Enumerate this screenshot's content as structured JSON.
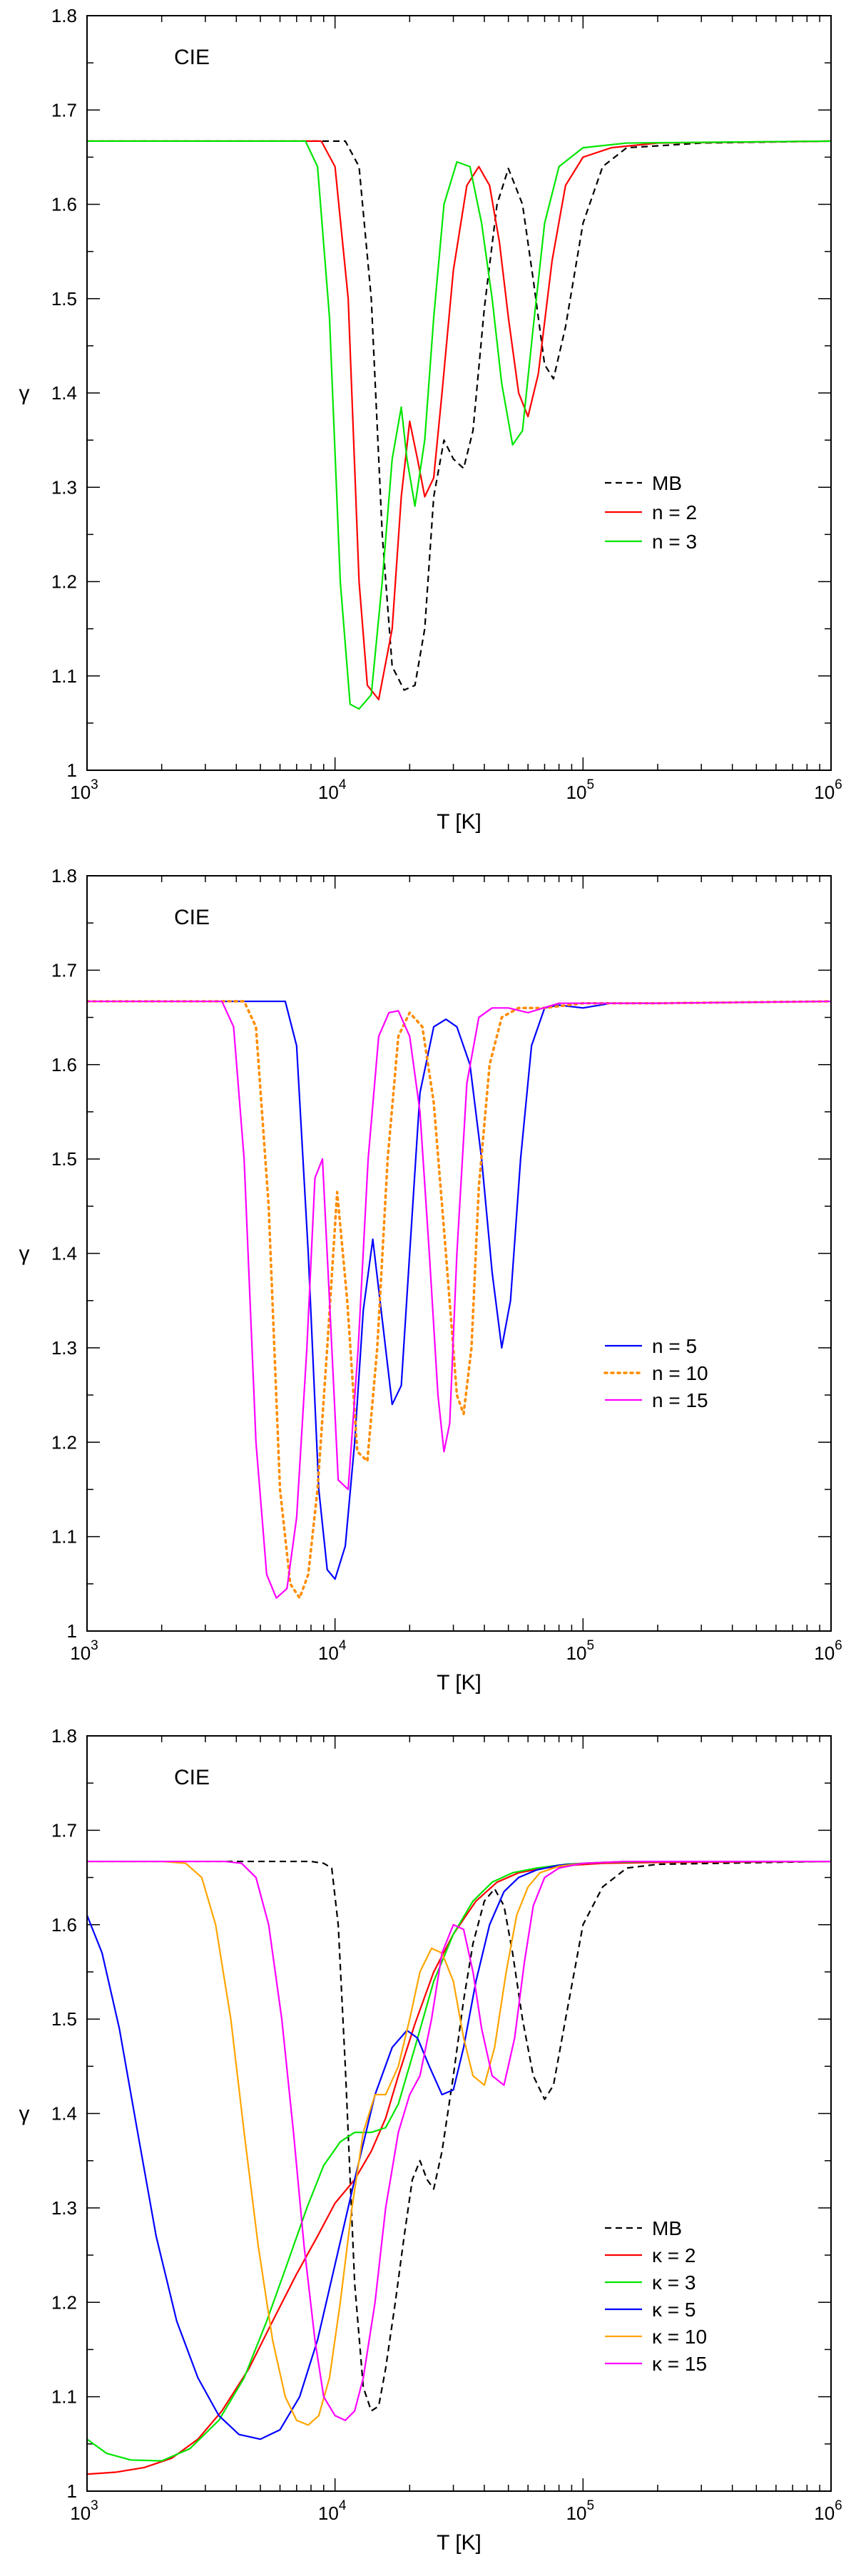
{
  "chart_data": [
    {
      "type": "line",
      "annotation": "CIE",
      "xlabel": "T [K]",
      "ylabel": "γ",
      "xscale": "log",
      "xlim": [
        1000,
        1000000
      ],
      "ylim": [
        1.0,
        1.8
      ],
      "x_tick_labels": [
        {
          "base": "10",
          "exp": "3"
        },
        {
          "base": "10",
          "exp": "4"
        },
        {
          "base": "10",
          "exp": "5"
        },
        {
          "base": "10",
          "exp": "6"
        }
      ],
      "y_tick_labels": [
        "1",
        "1.1",
        "1.2",
        "1.3",
        "1.4",
        "1.5",
        "1.6",
        "1.7",
        "1.8"
      ],
      "legend_position": "center-right",
      "series": [
        {
          "name": "MB",
          "color": "#000000",
          "dash": "dashed",
          "x": [
            1000,
            11000,
            12500,
            14000,
            15500,
            17000,
            19000,
            21000,
            23000,
            25000,
            27500,
            30000,
            33000,
            36000,
            40000,
            45000,
            50000,
            57000,
            63000,
            70000,
            76000,
            85000,
            100000,
            120000,
            150000,
            200000,
            300000,
            1000000
          ],
          "y": [
            1.667,
            1.667,
            1.64,
            1.5,
            1.25,
            1.11,
            1.085,
            1.09,
            1.15,
            1.29,
            1.35,
            1.33,
            1.32,
            1.36,
            1.49,
            1.6,
            1.638,
            1.6,
            1.52,
            1.43,
            1.415,
            1.47,
            1.58,
            1.64,
            1.66,
            1.662,
            1.665,
            1.667
          ]
        },
        {
          "name": "n = 2",
          "color": "#ff0000",
          "dash": "solid",
          "x": [
            1000,
            8800,
            10000,
            11300,
            12500,
            13500,
            15000,
            17000,
            18500,
            20000,
            21500,
            23000,
            25000,
            27000,
            30000,
            34000,
            38000,
            42000,
            46000,
            50000,
            55000,
            60000,
            66000,
            75000,
            85000,
            100000,
            130000,
            200000,
            1000000
          ],
          "y": [
            1.667,
            1.667,
            1.64,
            1.5,
            1.2,
            1.09,
            1.075,
            1.15,
            1.29,
            1.37,
            1.33,
            1.29,
            1.31,
            1.4,
            1.53,
            1.62,
            1.64,
            1.62,
            1.56,
            1.48,
            1.4,
            1.375,
            1.42,
            1.54,
            1.62,
            1.65,
            1.66,
            1.665,
            1.667
          ]
        },
        {
          "name": "n = 3",
          "color": "#00e600",
          "dash": "solid",
          "x": [
            1000,
            7600,
            8500,
            9500,
            10500,
            11500,
            12500,
            14000,
            15500,
            17000,
            18500,
            19500,
            21000,
            23000,
            25000,
            27500,
            31000,
            35000,
            39000,
            43000,
            47000,
            52000,
            57000,
            63000,
            70000,
            80000,
            100000,
            150000,
            1000000
          ],
          "y": [
            1.667,
            1.667,
            1.64,
            1.48,
            1.2,
            1.07,
            1.065,
            1.08,
            1.2,
            1.33,
            1.385,
            1.33,
            1.28,
            1.35,
            1.48,
            1.6,
            1.645,
            1.64,
            1.58,
            1.5,
            1.41,
            1.345,
            1.36,
            1.47,
            1.58,
            1.64,
            1.66,
            1.665,
            1.667
          ]
        }
      ]
    },
    {
      "type": "line",
      "annotation": "CIE",
      "xlabel": "T [K]",
      "ylabel": "γ",
      "xscale": "log",
      "xlim": [
        1000,
        1000000
      ],
      "ylim": [
        1.0,
        1.8
      ],
      "x_tick_labels": [
        {
          "base": "10",
          "exp": "3"
        },
        {
          "base": "10",
          "exp": "4"
        },
        {
          "base": "10",
          "exp": "5"
        },
        {
          "base": "10",
          "exp": "6"
        }
      ],
      "y_tick_labels": [
        "1",
        "1.1",
        "1.2",
        "1.3",
        "1.4",
        "1.5",
        "1.6",
        "1.7",
        "1.8"
      ],
      "legend_position": "center-right",
      "series": [
        {
          "name": "n = 5",
          "color": "#0000ff",
          "dash": "solid",
          "x": [
            1000,
            6300,
            7000,
            7800,
            8600,
            9300,
            10000,
            11000,
            12000,
            13000,
            14200,
            15500,
            17000,
            18500,
            20000,
            22000,
            25000,
            28000,
            31000,
            35000,
            39000,
            43000,
            47000,
            51000,
            56000,
            62000,
            70000,
            80000,
            100000,
            130000,
            200000,
            1000000
          ],
          "y": [
            1.667,
            1.667,
            1.62,
            1.4,
            1.15,
            1.065,
            1.055,
            1.09,
            1.2,
            1.34,
            1.415,
            1.33,
            1.24,
            1.26,
            1.4,
            1.57,
            1.64,
            1.648,
            1.64,
            1.6,
            1.5,
            1.38,
            1.3,
            1.35,
            1.5,
            1.62,
            1.66,
            1.663,
            1.66,
            1.665,
            1.665,
            1.667
          ]
        },
        {
          "name": "n = 10",
          "color": "#ff8c00",
          "dash": "dotted",
          "x": [
            1000,
            4300,
            4800,
            5400,
            6000,
            6600,
            7200,
            7800,
            8500,
            9300,
            10200,
            11200,
            12300,
            13500,
            14800,
            16300,
            18000,
            20000,
            22500,
            25000,
            28000,
            31000,
            33000,
            35500,
            38000,
            42000,
            47000,
            55000,
            70000,
            100000,
            200000,
            1000000
          ],
          "y": [
            1.667,
            1.667,
            1.64,
            1.45,
            1.15,
            1.05,
            1.035,
            1.06,
            1.15,
            1.3,
            1.465,
            1.35,
            1.19,
            1.18,
            1.3,
            1.5,
            1.63,
            1.655,
            1.64,
            1.56,
            1.4,
            1.25,
            1.23,
            1.3,
            1.47,
            1.6,
            1.65,
            1.66,
            1.66,
            1.665,
            1.665,
            1.667
          ]
        },
        {
          "name": "n = 15",
          "color": "#ff00ff",
          "dash": "solid",
          "x": [
            1000,
            3500,
            3900,
            4300,
            4800,
            5300,
            5800,
            6400,
            7000,
            7700,
            8300,
            8900,
            9500,
            10300,
            11300,
            12400,
            13600,
            15000,
            16500,
            18000,
            20000,
            22000,
            24000,
            26000,
            27500,
            29000,
            31000,
            34000,
            38000,
            43000,
            50000,
            60000,
            80000,
            100000,
            200000,
            1000000
          ],
          "y": [
            1.667,
            1.667,
            1.64,
            1.5,
            1.2,
            1.06,
            1.035,
            1.045,
            1.12,
            1.3,
            1.48,
            1.5,
            1.35,
            1.16,
            1.15,
            1.3,
            1.5,
            1.63,
            1.655,
            1.657,
            1.63,
            1.55,
            1.4,
            1.25,
            1.19,
            1.22,
            1.4,
            1.58,
            1.65,
            1.66,
            1.66,
            1.655,
            1.665,
            1.665,
            1.665,
            1.667
          ]
        }
      ]
    },
    {
      "type": "line",
      "annotation": "CIE",
      "xlabel": "T [K]",
      "ylabel": "γ",
      "xscale": "log",
      "xlim": [
        1000,
        1000000
      ],
      "ylim": [
        1.0,
        1.8
      ],
      "x_tick_labels": [
        {
          "base": "10",
          "exp": "3"
        },
        {
          "base": "10",
          "exp": "4"
        },
        {
          "base": "10",
          "exp": "5"
        },
        {
          "base": "10",
          "exp": "6"
        }
      ],
      "y_tick_labels": [
        "1",
        "1.1",
        "1.2",
        "1.3",
        "1.4",
        "1.5",
        "1.6",
        "1.7",
        "1.8"
      ],
      "legend_position": "center-right",
      "series": [
        {
          "name": "MB",
          "color": "#000000",
          "dash": "dashed",
          "x": [
            1000,
            8000,
            9000,
            9700,
            10300,
            11000,
            12000,
            13000,
            14000,
            15000,
            16000,
            17500,
            19000,
            20500,
            22000,
            23500,
            25000,
            27000,
            30000,
            33000,
            36000,
            40000,
            44000,
            48000,
            52000,
            57000,
            63000,
            70000,
            76000,
            85000,
            100000,
            120000,
            150000,
            200000,
            1000000
          ],
          "y": [
            1.667,
            1.667,
            1.665,
            1.66,
            1.6,
            1.45,
            1.22,
            1.11,
            1.085,
            1.09,
            1.13,
            1.2,
            1.27,
            1.33,
            1.35,
            1.33,
            1.32,
            1.36,
            1.44,
            1.52,
            1.58,
            1.625,
            1.638,
            1.62,
            1.57,
            1.5,
            1.44,
            1.415,
            1.43,
            1.5,
            1.6,
            1.64,
            1.66,
            1.664,
            1.667
          ]
        },
        {
          "name": "κ = 2",
          "color": "#ff0000",
          "dash": "solid",
          "x": [
            1000,
            1300,
            1700,
            2200,
            2800,
            3500,
            4500,
            5600,
            7000,
            8500,
            10000,
            12000,
            14000,
            16000,
            18000,
            21000,
            25000,
            30000,
            37000,
            45000,
            55000,
            70000,
            90000,
            120000,
            200000,
            1000000
          ],
          "y": [
            1.018,
            1.02,
            1.025,
            1.035,
            1.055,
            1.085,
            1.13,
            1.18,
            1.23,
            1.27,
            1.305,
            1.33,
            1.36,
            1.395,
            1.44,
            1.495,
            1.55,
            1.59,
            1.625,
            1.645,
            1.655,
            1.66,
            1.663,
            1.665,
            1.666,
            1.667
          ]
        },
        {
          "name": "κ = 3",
          "color": "#00e600",
          "dash": "solid",
          "x": [
            1000,
            1200,
            1500,
            2000,
            2600,
            3400,
            4300,
            5300,
            6400,
            7700,
            9000,
            10500,
            12000,
            14000,
            16000,
            18000,
            21000,
            25000,
            30000,
            36000,
            43000,
            52000,
            65000,
            85000,
            120000,
            200000,
            1000000
          ],
          "y": [
            1.055,
            1.04,
            1.033,
            1.032,
            1.045,
            1.075,
            1.12,
            1.18,
            1.24,
            1.3,
            1.345,
            1.37,
            1.38,
            1.38,
            1.385,
            1.41,
            1.47,
            1.54,
            1.59,
            1.625,
            1.645,
            1.655,
            1.66,
            1.664,
            1.666,
            1.667,
            1.667
          ]
        },
        {
          "name": "κ = 5",
          "color": "#0000ff",
          "dash": "solid",
          "x": [
            1000,
            1150,
            1350,
            1600,
            1900,
            2300,
            2800,
            3400,
            4100,
            5000,
            6000,
            7200,
            8500,
            10000,
            12000,
            14500,
            17000,
            19500,
            21500,
            24000,
            27000,
            30000,
            33000,
            37000,
            42000,
            48000,
            55000,
            65000,
            80000,
            100000,
            150000,
            1000000
          ],
          "y": [
            1.61,
            1.57,
            1.49,
            1.38,
            1.27,
            1.18,
            1.12,
            1.08,
            1.06,
            1.055,
            1.065,
            1.1,
            1.16,
            1.24,
            1.33,
            1.42,
            1.47,
            1.488,
            1.48,
            1.45,
            1.42,
            1.425,
            1.47,
            1.54,
            1.6,
            1.635,
            1.65,
            1.658,
            1.663,
            1.665,
            1.667,
            1.667
          ]
        },
        {
          "name": "κ = 10",
          "color": "#ffa500",
          "dash": "solid",
          "x": [
            1000,
            2000,
            2500,
            2900,
            3300,
            3800,
            4300,
            4900,
            5600,
            6300,
            7000,
            7800,
            8600,
            9500,
            10500,
            11700,
            13000,
            14500,
            16000,
            18000,
            20000,
            22000,
            24500,
            27000,
            30000,
            33000,
            36000,
            40000,
            44000,
            49000,
            54000,
            60000,
            67000,
            80000,
            100000,
            150000,
            1000000
          ],
          "y": [
            1.667,
            1.667,
            1.665,
            1.65,
            1.6,
            1.5,
            1.38,
            1.26,
            1.16,
            1.1,
            1.075,
            1.07,
            1.08,
            1.12,
            1.2,
            1.3,
            1.38,
            1.42,
            1.42,
            1.45,
            1.5,
            1.55,
            1.575,
            1.57,
            1.54,
            1.48,
            1.44,
            1.43,
            1.47,
            1.55,
            1.61,
            1.64,
            1.655,
            1.662,
            1.665,
            1.667,
            1.667
          ]
        },
        {
          "name": "κ = 15",
          "color": "#ff00ff",
          "dash": "solid",
          "x": [
            1000,
            3600,
            4200,
            4800,
            5400,
            6100,
            6800,
            7500,
            8300,
            9000,
            10000,
            11000,
            12000,
            13000,
            14500,
            16000,
            18000,
            20000,
            22000,
            24500,
            27000,
            30000,
            33000,
            36000,
            39000,
            43000,
            48000,
            53000,
            58000,
            63000,
            70000,
            80000,
            100000,
            150000,
            1000000
          ],
          "y": [
            1.667,
            1.667,
            1.665,
            1.65,
            1.6,
            1.5,
            1.38,
            1.26,
            1.16,
            1.1,
            1.08,
            1.075,
            1.085,
            1.12,
            1.2,
            1.3,
            1.38,
            1.42,
            1.44,
            1.5,
            1.57,
            1.6,
            1.595,
            1.55,
            1.49,
            1.44,
            1.43,
            1.48,
            1.56,
            1.62,
            1.65,
            1.66,
            1.665,
            1.667,
            1.667
          ]
        }
      ]
    }
  ]
}
